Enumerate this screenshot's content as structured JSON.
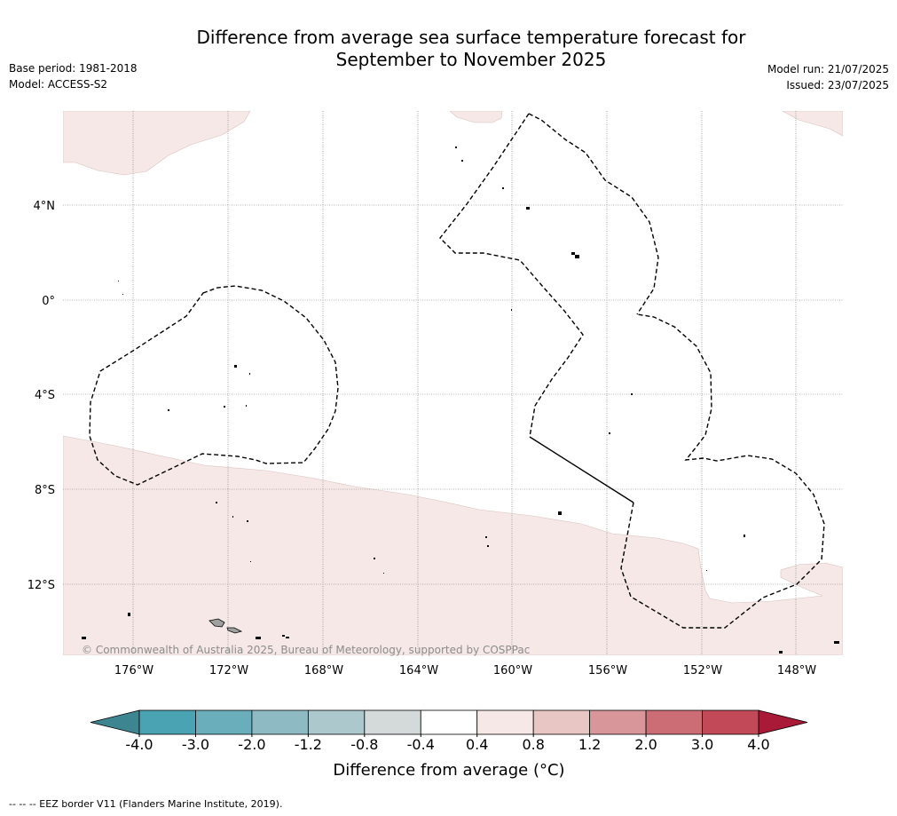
{
  "header": {
    "title_line1": "Difference from average sea surface temperature forecast for",
    "title_line2": "September to November 2025",
    "base_period": "Base period: 1981-2018",
    "model": "Model: ACCESS-S2",
    "model_run": "Model run: 21/07/2025",
    "issued": "Issued: 23/07/2025"
  },
  "map": {
    "copyright": "© Commonwealth of Australia 2025, Bureau of Meteorology, supported by COSPPac",
    "lat_labels": [
      "4°N",
      "0°",
      "4°S",
      "8°S",
      "12°S"
    ],
    "lon_labels": [
      "176°W",
      "172°W",
      "168°W",
      "164°W",
      "160°W",
      "156°W",
      "152°W",
      "148°W"
    ],
    "anomaly_fill_color": "#f5e8e6",
    "eez_border_color": "#000000",
    "land_color": "#a0a0a0"
  },
  "colorbar": {
    "label": "Difference from average (°C)",
    "tick_labels": [
      "-4.0",
      "-3.0",
      "-2.0",
      "-1.2",
      "-0.8",
      "-0.4",
      "0.4",
      "0.8",
      "1.2",
      "2.0",
      "3.0",
      "4.0"
    ],
    "colors": [
      "#4aa3b3",
      "#6aaebc",
      "#8ebac4",
      "#acc8cc",
      "#d4d9da",
      "#ffffff",
      "#f5e8e6",
      "#e8c6c3",
      "#d8959a",
      "#cc6d76",
      "#c24a58"
    ],
    "under_color": "#3d8590",
    "over_color": "#a91a38"
  },
  "footer": {
    "legend_note": "-- -- -- EEZ border V11 (Flanders Marine Institute, 2019)."
  }
}
